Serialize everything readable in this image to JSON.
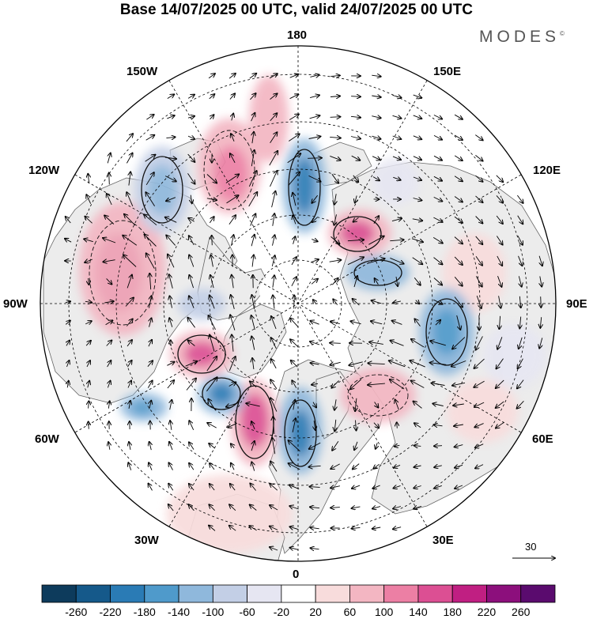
{
  "title": "Base 14/07/2025 00 UTC, valid 24/07/2025 00 UTC",
  "brand": "MODES",
  "brand_mark": "©",
  "longitude_labels": {
    "top": "180",
    "bottom": "0",
    "left": "90W",
    "right": "90E",
    "upper_left_1": "150W",
    "upper_left_2": "120W",
    "upper_right_1": "150E",
    "upper_right_2": "120E",
    "lower_left_1": "60W",
    "lower_left_2": "30W",
    "lower_right_1": "60E",
    "lower_right_2": "30E"
  },
  "reference_vector": "30",
  "colorbar": {
    "ticks": [
      "-260",
      "-220",
      "-180",
      "-140",
      "-100",
      "-60",
      "-20",
      "20",
      "60",
      "100",
      "140",
      "180",
      "220",
      "260"
    ],
    "colors": [
      "#0d3b5c",
      "#15598a",
      "#2a7bb5",
      "#4f9acb",
      "#8fb8dc",
      "#c3cfe6",
      "#e6e6f2",
      "#ffffff",
      "#f8dcdc",
      "#f3b6c2",
      "#ec7fa4",
      "#dc4f93",
      "#c01f82",
      "#8c0f7c",
      "#5a0b6e"
    ]
  },
  "colors": {
    "land": "#ececec",
    "ocean": "#ffffff",
    "coast": "#555555",
    "grid": "#000000"
  }
}
